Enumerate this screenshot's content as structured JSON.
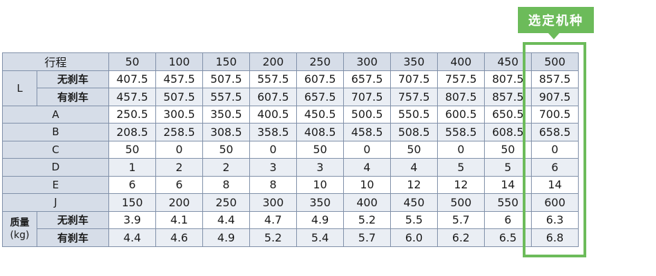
{
  "badge": {
    "label": "选定机种"
  },
  "colors": {
    "highlight": "#6cbb5a",
    "header_bg": "#d6dde8"
  },
  "table": {
    "stroke_label": "行程",
    "strokes": [
      "50",
      "100",
      "150",
      "200",
      "250",
      "300",
      "350",
      "400",
      "450",
      "500"
    ],
    "L": {
      "label": "L",
      "rows": [
        {
          "label": "无刹车",
          "values": [
            "407.5",
            "457.5",
            "507.5",
            "557.5",
            "607.5",
            "657.5",
            "707.5",
            "757.5",
            "807.5",
            "857.5"
          ]
        },
        {
          "label": "有刹车",
          "values": [
            "457.5",
            "507.5",
            "557.5",
            "607.5",
            "657.5",
            "707.5",
            "757.5",
            "807.5",
            "857.5",
            "907.5"
          ]
        }
      ]
    },
    "rows": [
      {
        "label": "A",
        "values": [
          "250.5",
          "300.5",
          "350.5",
          "400.5",
          "450.5",
          "500.5",
          "550.5",
          "600.5",
          "650.5",
          "700.5"
        ]
      },
      {
        "label": "B",
        "values": [
          "208.5",
          "258.5",
          "308.5",
          "358.5",
          "408.5",
          "458.5",
          "508.5",
          "558.5",
          "608.5",
          "658.5"
        ]
      },
      {
        "label": "C",
        "values": [
          "50",
          "0",
          "50",
          "0",
          "50",
          "0",
          "50",
          "0",
          "50",
          "0"
        ]
      },
      {
        "label": "D",
        "values": [
          "1",
          "2",
          "2",
          "3",
          "3",
          "4",
          "4",
          "5",
          "5",
          "6"
        ]
      },
      {
        "label": "E",
        "values": [
          "6",
          "6",
          "8",
          "8",
          "10",
          "10",
          "12",
          "12",
          "14",
          "14"
        ]
      },
      {
        "label": "J",
        "values": [
          "150",
          "200",
          "250",
          "300",
          "350",
          "400",
          "450",
          "500",
          "550",
          "600"
        ]
      }
    ],
    "mass": {
      "label_line1": "质量",
      "label_line2": "(kg)",
      "rows": [
        {
          "label": "无刹车",
          "values": [
            "3.9",
            "4.1",
            "4.4",
            "4.7",
            "4.9",
            "5.2",
            "5.5",
            "5.7",
            "6",
            "6.3"
          ]
        },
        {
          "label": "有刹车",
          "values": [
            "4.4",
            "4.6",
            "4.9",
            "5.2",
            "5.4",
            "5.7",
            "6.0",
            "6.2",
            "6.5",
            "6.8"
          ]
        }
      ]
    }
  }
}
